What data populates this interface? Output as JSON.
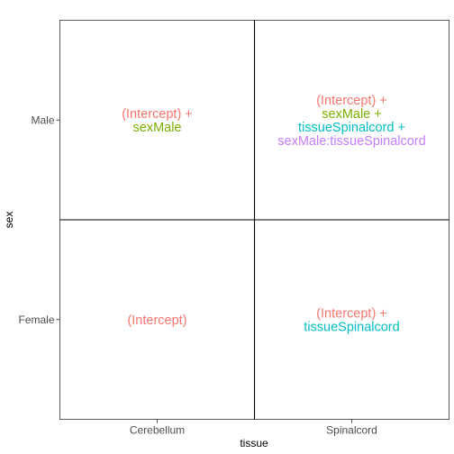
{
  "chart_data": {
    "type": "table",
    "title": "",
    "xlabel": "tissue",
    "ylabel": "sex",
    "x_categories": [
      "Cerebellum",
      "Spinalcord"
    ],
    "y_categories": [
      "Female",
      "Male"
    ],
    "grid": false,
    "cells": [
      {
        "x": "Cerebellum",
        "y": "Male",
        "terms": [
          {
            "text": "(Intercept) +",
            "color": "#F8766D"
          },
          {
            "text": "sexMale",
            "color": "#7CAE00"
          }
        ]
      },
      {
        "x": "Spinalcord",
        "y": "Male",
        "terms": [
          {
            "text": "(Intercept) +",
            "color": "#F8766D"
          },
          {
            "text": "sexMale +",
            "color": "#7CAE00"
          },
          {
            "text": "tissueSpinalcord +",
            "color": "#00BFC4"
          },
          {
            "text": "sexMale:tissueSpinalcord",
            "color": "#C77CFF"
          }
        ]
      },
      {
        "x": "Cerebellum",
        "y": "Female",
        "terms": [
          {
            "text": "(Intercept)",
            "color": "#F8766D"
          }
        ]
      },
      {
        "x": "Spinalcord",
        "y": "Female",
        "terms": [
          {
            "text": "(Intercept) +",
            "color": "#F8766D"
          },
          {
            "text": "tissueSpinalcord",
            "color": "#00BFC4"
          }
        ]
      }
    ]
  }
}
